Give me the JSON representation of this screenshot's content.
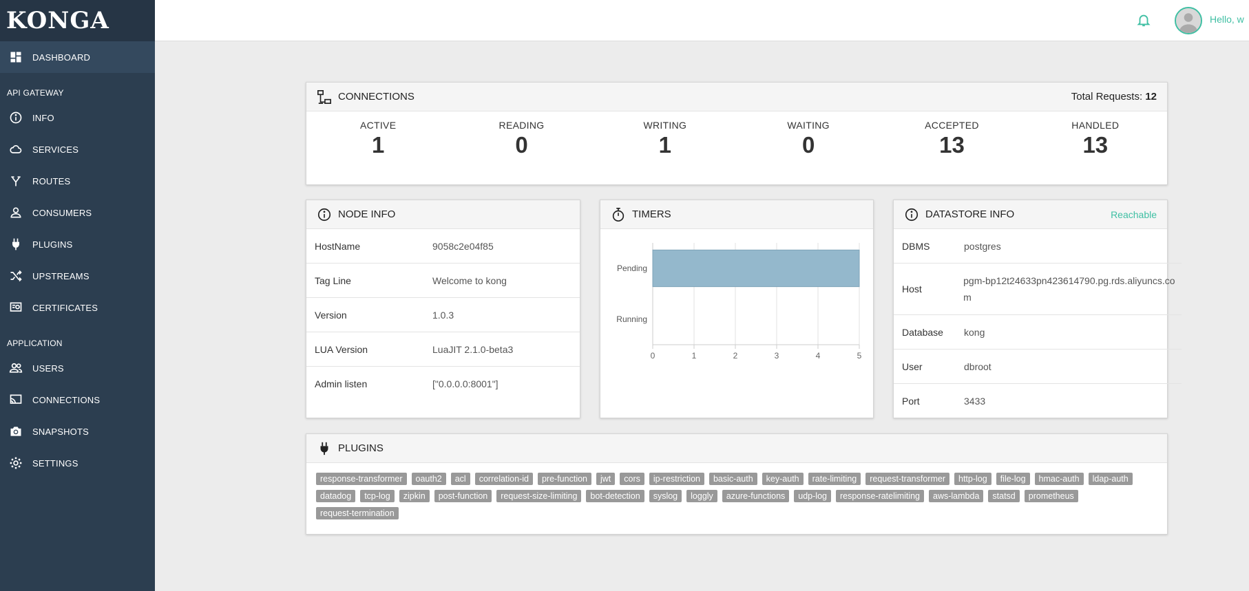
{
  "app": {
    "logo": "KONGA"
  },
  "sidebar": {
    "dashboard": "DASHBOARD",
    "section_gateway": "API GATEWAY",
    "gateway_items": [
      {
        "label": "INFO",
        "icon": "info-icon"
      },
      {
        "label": "SERVICES",
        "icon": "cloud-icon"
      },
      {
        "label": "ROUTES",
        "icon": "routes-icon"
      },
      {
        "label": "CONSUMERS",
        "icon": "user-icon"
      },
      {
        "label": "PLUGINS",
        "icon": "plug-icon"
      },
      {
        "label": "UPSTREAMS",
        "icon": "shuffle-icon"
      },
      {
        "label": "CERTIFICATES",
        "icon": "certificate-icon"
      }
    ],
    "section_application": "APPLICATION",
    "app_items": [
      {
        "label": "USERS",
        "icon": "users-icon"
      },
      {
        "label": "CONNECTIONS",
        "icon": "connections-icon"
      },
      {
        "label": "SNAPSHOTS",
        "icon": "camera-icon"
      },
      {
        "label": "SETTINGS",
        "icon": "gear-icon"
      }
    ]
  },
  "header": {
    "greeting": "Hello, w"
  },
  "connections": {
    "title": "CONNECTIONS",
    "total_label": "Total Requests:",
    "total_value": "12",
    "stats": [
      {
        "label": "ACTIVE",
        "value": "1"
      },
      {
        "label": "READING",
        "value": "0"
      },
      {
        "label": "WRITING",
        "value": "1"
      },
      {
        "label": "WAITING",
        "value": "0"
      },
      {
        "label": "ACCEPTED",
        "value": "13"
      },
      {
        "label": "HANDLED",
        "value": "13"
      }
    ]
  },
  "node_info": {
    "title": "NODE INFO",
    "rows": [
      {
        "key": "HostName",
        "value": "9058c2e04f85"
      },
      {
        "key": "Tag Line",
        "value": "Welcome to kong"
      },
      {
        "key": "Version",
        "value": "1.0.3"
      },
      {
        "key": "LUA Version",
        "value": "LuaJIT 2.1.0-beta3"
      },
      {
        "key": "Admin listen",
        "value": "[\"0.0.0.0:8001\"]"
      }
    ]
  },
  "timers": {
    "title": "TIMERS"
  },
  "chart_data": {
    "type": "bar",
    "orientation": "horizontal",
    "categories": [
      "Pending",
      "Running"
    ],
    "values": [
      5,
      0
    ],
    "xlim": [
      0,
      5
    ],
    "xticks": [
      "0",
      "1",
      "2",
      "3",
      "4",
      "5"
    ],
    "bar_color": "#94b8cc",
    "grid": true
  },
  "datastore": {
    "title": "DATASTORE INFO",
    "status": "Reachable",
    "rows": [
      {
        "key": "DBMS",
        "value": "postgres"
      },
      {
        "key": "Host",
        "value": "pgm-bp12t24633pn423614790.pg.rds.aliyuncs.com"
      },
      {
        "key": "Database",
        "value": "kong"
      },
      {
        "key": "User",
        "value": "dbroot"
      },
      {
        "key": "Port",
        "value": "3433"
      }
    ]
  },
  "plugins": {
    "title": "PLUGINS",
    "tags": [
      "response-transformer",
      "oauth2",
      "acl",
      "correlation-id",
      "pre-function",
      "jwt",
      "cors",
      "ip-restriction",
      "basic-auth",
      "key-auth",
      "rate-limiting",
      "request-transformer",
      "http-log",
      "file-log",
      "hmac-auth",
      "ldap-auth",
      "datadog",
      "tcp-log",
      "zipkin",
      "post-function",
      "request-size-limiting",
      "bot-detection",
      "syslog",
      "loggly",
      "azure-functions",
      "udp-log",
      "response-ratelimiting",
      "aws-lambda",
      "statsd",
      "prometheus",
      "request-termination"
    ]
  },
  "colors": {
    "sidebar": "#2c3e50",
    "accent": "#3fbfa3",
    "tag": "#999999"
  }
}
